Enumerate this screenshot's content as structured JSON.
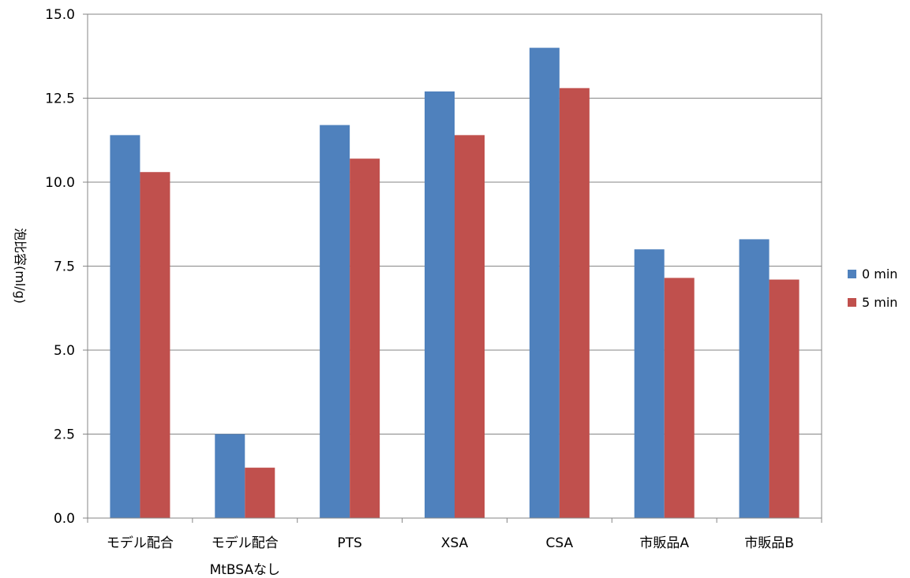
{
  "chart_data": {
    "type": "bar",
    "title": "",
    "xlabel": "",
    "ylabel": "泡比容(ml/g)",
    "ylim": [
      0,
      15
    ],
    "yticks": [
      "0.0",
      "2.5",
      "5.0",
      "7.5",
      "10.0",
      "12.5",
      "15.0"
    ],
    "grid": true,
    "legend_position": "right",
    "categories": [
      [
        "モデル配合"
      ],
      [
        "モデル配合",
        "MtBSAなし"
      ],
      [
        "PTS"
      ],
      [
        "XSA"
      ],
      [
        "CSA"
      ],
      [
        "市販品A"
      ],
      [
        "市販品B"
      ]
    ],
    "series": [
      {
        "name": "0 min",
        "color": "#4f81bd",
        "values": [
          11.4,
          2.5,
          11.7,
          12.7,
          14.0,
          8.0,
          8.3
        ]
      },
      {
        "name": "5 min",
        "color": "#c0504d",
        "values": [
          10.3,
          1.5,
          10.7,
          11.4,
          12.8,
          7.15,
          7.1
        ]
      }
    ]
  }
}
